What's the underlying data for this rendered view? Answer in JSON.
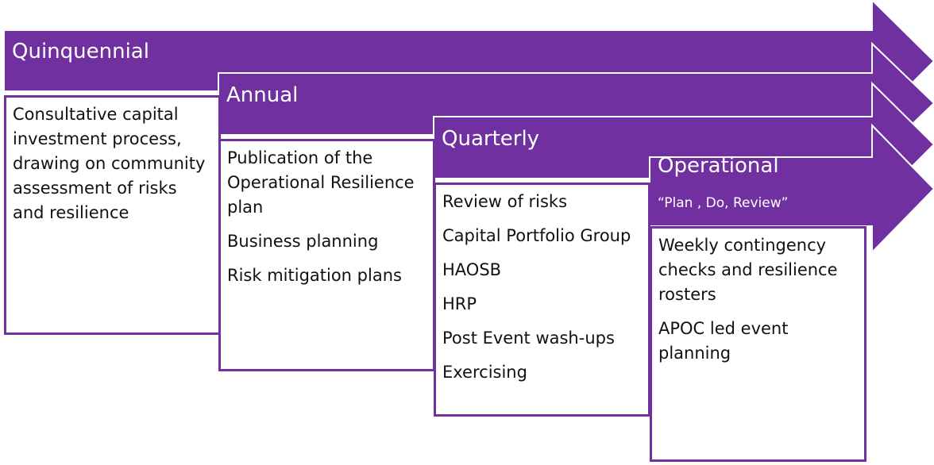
{
  "stages": [
    {
      "title": "Quinquennial",
      "items": [
        "Consultative capital investment process, drawing on community assessment of risks and resilience"
      ]
    },
    {
      "title": "Annual",
      "items": [
        "Publication of the Operational Resilience plan",
        "Business planning",
        "Risk mitigation plans"
      ]
    },
    {
      "title": "Quarterly",
      "items": [
        "Review of risks",
        "Capital Portfolio Group",
        "HAOSB",
        "HRP",
        "Post Event wash-ups",
        "Exercising"
      ]
    },
    {
      "title": "Operational",
      "subtitle": "“Plan , Do, Review”",
      "items": [
        "Weekly contingency checks and resilience rosters",
        "APOC led event planning"
      ]
    }
  ]
}
